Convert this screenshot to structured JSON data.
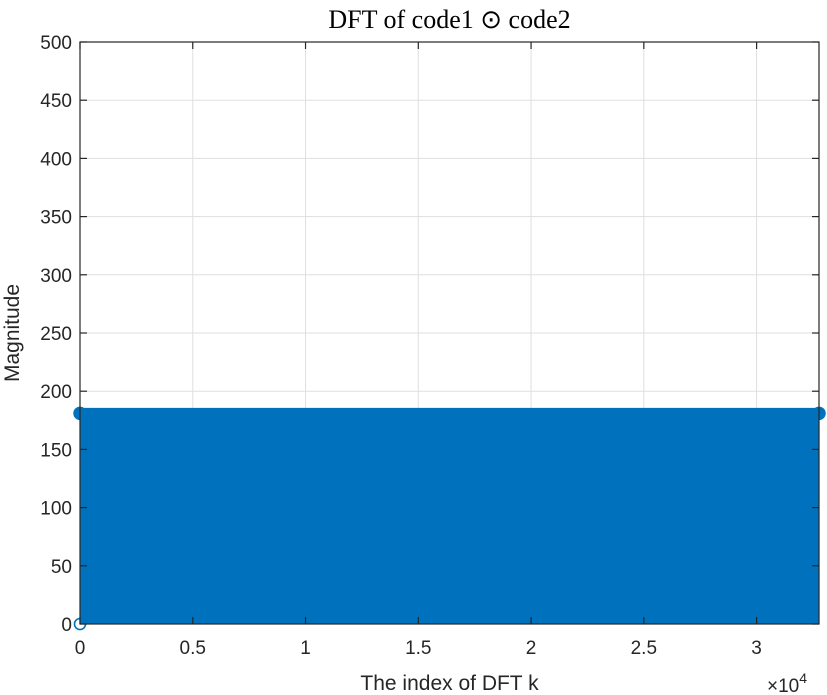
{
  "chart_data": {
    "type": "stem",
    "title": "DFT of code1 ⊙ code2",
    "xlabel": "The index of DFT k",
    "ylabel": "Magnitude",
    "xlim": [
      0,
      32767
    ],
    "ylim": [
      0,
      500
    ],
    "grid": true,
    "x_ticks": [
      0,
      5000,
      10000,
      15000,
      20000,
      25000,
      30000
    ],
    "x_tick_labels": [
      "0",
      "0.5",
      "1",
      "1.5",
      "2",
      "2.5",
      "3"
    ],
    "x_exponent_base": "×10",
    "x_exponent_power": "4",
    "y_ticks": [
      0,
      50,
      100,
      150,
      200,
      250,
      300,
      350,
      400,
      450,
      500
    ],
    "y_tick_labels": [
      "0",
      "50",
      "100",
      "150",
      "200",
      "250",
      "300",
      "350",
      "400",
      "450",
      "500"
    ],
    "series": [
      {
        "color": "#0072BD",
        "marker": "circle",
        "points": [
          {
            "x": 0,
            "y": 0
          },
          {
            "x": 1,
            "y": 181
          },
          {
            "x": 32767,
            "y": 181
          }
        ],
        "constant_value": 181,
        "x_range": [
          1,
          32767
        ],
        "dc_value": 0
      }
    ]
  }
}
